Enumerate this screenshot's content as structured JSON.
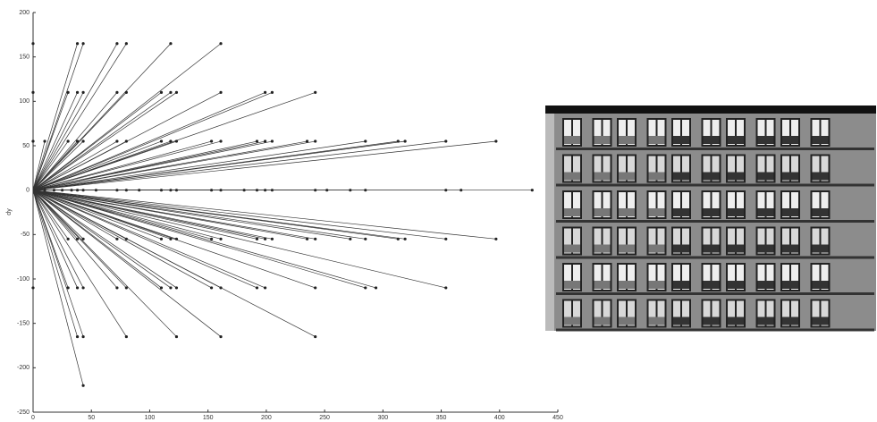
{
  "chart_data": {
    "type": "scatter",
    "ylabel": "dy",
    "color": "#222",
    "x": [
      0,
      38,
      43,
      72,
      80,
      118,
      161,
      0,
      30,
      38,
      43,
      72,
      80,
      110,
      118,
      123,
      161,
      199,
      205,
      242,
      0,
      10,
      30,
      38,
      43,
      72,
      80,
      110,
      118,
      123,
      153,
      161,
      192,
      199,
      205,
      235,
      242,
      285,
      313,
      319,
      354,
      397,
      10,
      18,
      25,
      33,
      38,
      43,
      54,
      72,
      80,
      91,
      110,
      118,
      123,
      153,
      161,
      181,
      192,
      199,
      205,
      242,
      252,
      272,
      285,
      354,
      367,
      428,
      30,
      38,
      43,
      72,
      80,
      110,
      118,
      123,
      153,
      161,
      192,
      199,
      205,
      235,
      242,
      272,
      285,
      313,
      319,
      354,
      397,
      0,
      30,
      38,
      43,
      72,
      80,
      110,
      118,
      123,
      153,
      161,
      192,
      199,
      242,
      285,
      294,
      354,
      38,
      43,
      80,
      123,
      161,
      242,
      43
    ],
    "values": [
      165,
      165,
      165,
      165,
      165,
      165,
      165,
      110,
      110,
      110,
      110,
      110,
      110,
      110,
      110,
      110,
      110,
      110,
      110,
      110,
      55,
      55,
      55,
      55,
      55,
      55,
      55,
      55,
      55,
      55,
      55,
      55,
      55,
      55,
      55,
      55,
      55,
      55,
      55,
      55,
      55,
      55,
      0,
      0,
      0,
      0,
      0,
      0,
      0,
      0,
      0,
      0,
      0,
      0,
      0,
      0,
      0,
      0,
      0,
      0,
      0,
      0,
      0,
      0,
      0,
      0,
      0,
      0,
      -55,
      -55,
      -55,
      -55,
      -55,
      -55,
      -55,
      -55,
      -55,
      -55,
      -55,
      -55,
      -55,
      -55,
      -55,
      -55,
      -55,
      -55,
      -55,
      -55,
      -55,
      -110,
      -110,
      -110,
      -110,
      -110,
      -110,
      -110,
      -110,
      -110,
      -110,
      -110,
      -110,
      -110,
      -110,
      -110,
      -110,
      -110,
      -165,
      -165,
      -165,
      -165,
      -165,
      -165,
      -220
    ],
    "xlim": [
      0,
      450
    ],
    "ylim": [
      -250,
      200
    ],
    "xticks": [
      0,
      50,
      100,
      150,
      200,
      250,
      300,
      350,
      400,
      450
    ],
    "yticks": [
      -250,
      -200,
      -150,
      -100,
      -50,
      0,
      50,
      100,
      150,
      200
    ]
  }
}
